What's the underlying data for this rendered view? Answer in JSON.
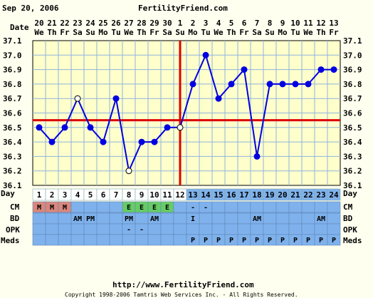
{
  "header": {
    "date_text": "Sep 20, 2006",
    "brand": "FertilityFriend.com"
  },
  "footer": {
    "url": "http://www.FertilityFriend.com",
    "copyright": "Copyright 1998-2006 Tamtris Web Services Inc. - All Rights Reserved."
  },
  "row_labels": {
    "date": "Date",
    "day": "Day",
    "cm": "CM",
    "bd": "BD",
    "opk": "OPK",
    "meds": "Meds"
  },
  "colors": {
    "background": "#fffff0",
    "plot_area": "#ffffcc",
    "grid": "#8fb3dc",
    "line": "#0000e0",
    "coverline": "#dd0000",
    "info_rows": "#7fb2ec",
    "menses": "#d9877d",
    "egg_white": "#66cc66"
  },
  "chart_data": {
    "type": "line",
    "title": "",
    "xlabel": "Day",
    "ylabel": "",
    "ylim": [
      36.1,
      37.1
    ],
    "yticks": [
      "37.1",
      "37.0",
      "36.9",
      "36.8",
      "36.7",
      "36.6",
      "36.5",
      "36.4",
      "36.3",
      "36.2",
      "36.1"
    ],
    "grid": true,
    "dates": [
      "20",
      "21",
      "22",
      "23",
      "24",
      "25",
      "26",
      "27",
      "28",
      "29",
      "30",
      "1",
      "2",
      "3",
      "4",
      "5",
      "6",
      "7",
      "8",
      "9",
      "10",
      "11",
      "12",
      "13"
    ],
    "weekdays": [
      "We",
      "Th",
      "Fr",
      "Sa",
      "Su",
      "Mo",
      "Tu",
      "We",
      "Th",
      "Fr",
      "Sa",
      "Su",
      "Mo",
      "Tu",
      "We",
      "Th",
      "Fr",
      "Sa",
      "Su",
      "Mo",
      "Tu",
      "We",
      "Th",
      "Fr"
    ],
    "cycle_days": [
      "1",
      "2",
      "3",
      "4",
      "5",
      "6",
      "7",
      "8",
      "9",
      "10",
      "11",
      "12",
      "13",
      "14",
      "15",
      "16",
      "17",
      "18",
      "19",
      "20",
      "21",
      "22",
      "23",
      "24"
    ],
    "series": [
      {
        "values": [
          36.5,
          36.4,
          36.5,
          36.7,
          36.5,
          36.4,
          36.7,
          36.2,
          36.4,
          36.4,
          36.5,
          36.5,
          36.8,
          37.0,
          36.7,
          36.8,
          36.9,
          36.3,
          36.8,
          36.8,
          36.8,
          36.8,
          36.9,
          36.9
        ],
        "open_points": [
          3,
          7,
          11
        ]
      }
    ],
    "coverline": 36.55,
    "ovulation_day": "12",
    "cm": [
      "M",
      "M",
      "M",
      "",
      "",
      "",
      "",
      "E",
      "E",
      "E",
      "E",
      "",
      "-",
      "-",
      "",
      "",
      "",
      "",
      "",
      "",
      "",
      "",
      "",
      ""
    ],
    "bd": [
      "",
      "",
      "",
      "AM",
      "PM",
      "",
      "",
      "PM",
      "",
      "AM",
      "",
      "",
      "I",
      "",
      "",
      "",
      "",
      "AM",
      "",
      "",
      "",
      "",
      "AM",
      ""
    ],
    "opk": [
      "",
      "",
      "",
      "",
      "",
      "",
      "",
      "-",
      "-",
      "",
      "",
      "",
      "",
      "",
      "",
      "",
      "",
      "",
      "",
      "",
      "",
      "",
      "",
      ""
    ],
    "meds": [
      "",
      "",
      "",
      "",
      "",
      "",
      "",
      "",
      "",
      "",
      "",
      "",
      "P",
      "P",
      "P",
      "P",
      "P",
      "P",
      "P",
      "P",
      "P",
      "P",
      "P",
      "P"
    ]
  }
}
